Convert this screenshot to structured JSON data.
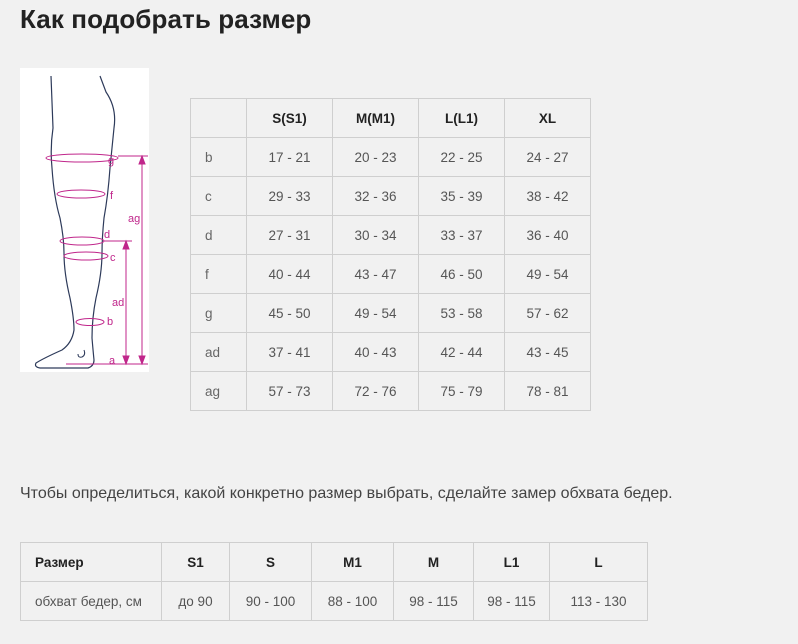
{
  "page": {
    "title": "Как подобрать размер"
  },
  "diagram": {
    "labels": [
      "g",
      "f",
      "ag",
      "d",
      "c",
      "ad",
      "b",
      "a"
    ],
    "line_color": "#c0268b"
  },
  "size_table": {
    "headers": [
      "",
      "S(S1)",
      "M(M1)",
      "L(L1)",
      "XL"
    ],
    "rows": [
      {
        "label": "b",
        "values": [
          "17 - 21",
          "20 - 23",
          "22 - 25",
          "24 - 27"
        ]
      },
      {
        "label": "c",
        "values": [
          "29 - 33",
          "32 - 36",
          "35 - 39",
          "38 - 42"
        ]
      },
      {
        "label": "d",
        "values": [
          "27 - 31",
          "30 - 34",
          "33 - 37",
          "36 - 40"
        ]
      },
      {
        "label": "f",
        "values": [
          "40 - 44",
          "43 - 47",
          "46 - 50",
          "49 - 54"
        ]
      },
      {
        "label": "g",
        "values": [
          "45 - 50",
          "49 - 54",
          "53 - 58",
          "57 - 62"
        ]
      },
      {
        "label": "ad",
        "values": [
          "37 - 41",
          "40 - 43",
          "42 - 44",
          "43 - 45"
        ]
      },
      {
        "label": "ag",
        "values": [
          "57 - 73",
          "72 - 76",
          "75 - 79",
          "78 - 81"
        ]
      }
    ]
  },
  "hint": "Чтобы определиться, какой конкретно размер выбрать, сделайте замер обхвата бедер.",
  "hip_table": {
    "headers": [
      "Размер",
      "S1",
      "S",
      "M1",
      "M",
      "L1",
      "L"
    ],
    "row": {
      "label": "обхват бедер, см",
      "values": [
        "до 90",
        "90 - 100",
        "88 - 100",
        "98 - 115",
        "98 - 115",
        "113 - 130"
      ]
    }
  }
}
